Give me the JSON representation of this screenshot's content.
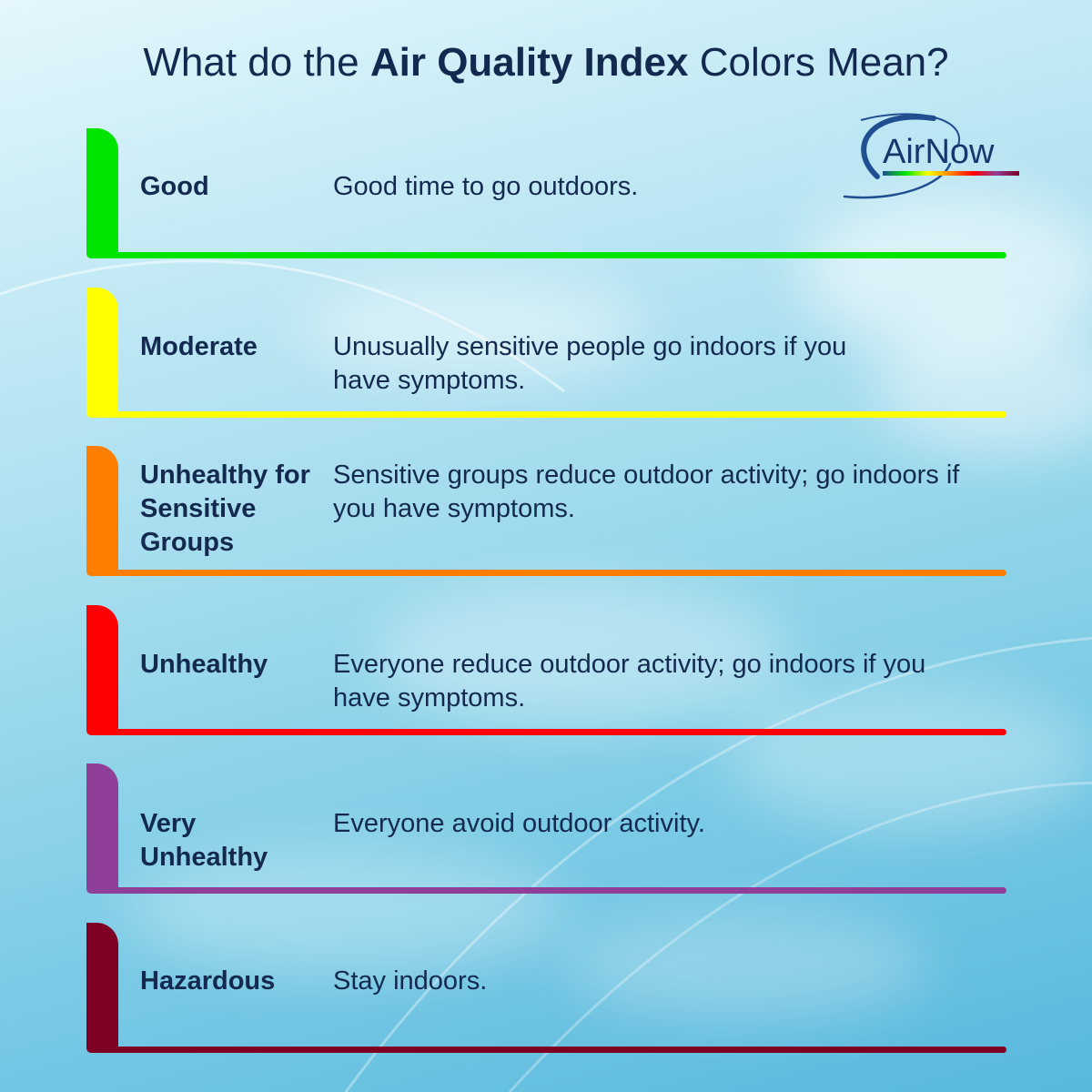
{
  "title": {
    "prefix": "What do the ",
    "emphasis": "Air Quality Index",
    "suffix": " Colors Mean?"
  },
  "logo": {
    "text": "AirNow",
    "colors": [
      "#1f4e91",
      "#00e400",
      "#ffff00",
      "#ff7e00",
      "#ff0000",
      "#8f3f97",
      "#7e0023"
    ]
  },
  "levels": [
    {
      "label": "Good",
      "description": "Good time to go outdoors.",
      "color": "#00e400"
    },
    {
      "label": "Moderate",
      "description": "Unusually sensitive people go indoors if you have symptoms.",
      "color": "#ffff00"
    },
    {
      "label": "Unhealthy for Sensitive Groups",
      "description": "Sensitive groups reduce outdoor activity; go indoors if you have symptoms.",
      "color": "#ff7e00"
    },
    {
      "label": "Unhealthy",
      "description": "Everyone reduce outdoor activity; go indoors if you have symptoms.",
      "color": "#ff0000"
    },
    {
      "label": "Very Unhealthy",
      "description": "Everyone avoid outdoor activity.",
      "color": "#8f3f97"
    },
    {
      "label": "Hazardous",
      "description": "Stay indoors.",
      "color": "#7e0023"
    }
  ]
}
